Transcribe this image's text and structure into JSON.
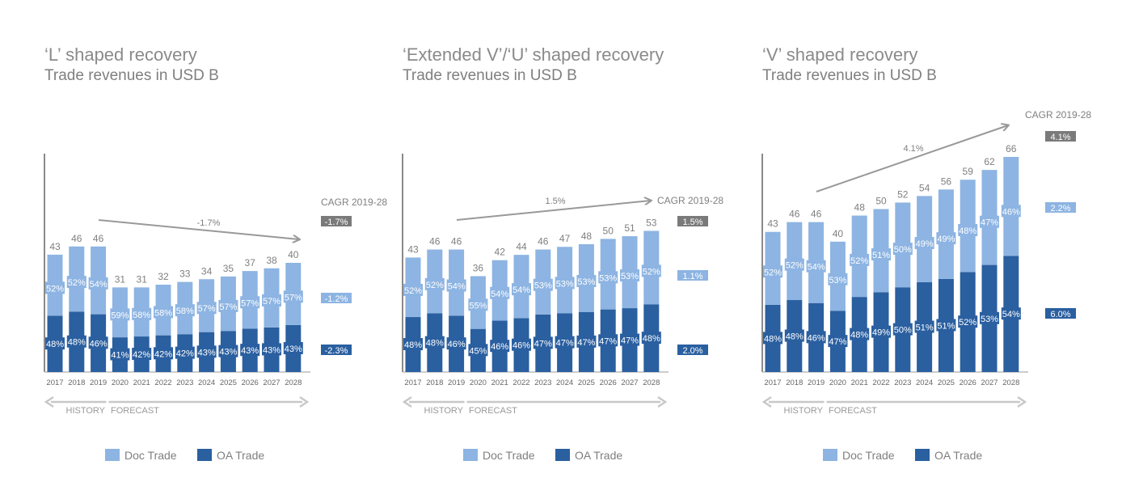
{
  "colors": {
    "doc": "#8db4e2",
    "oa": "#2a5fa0",
    "total_box": "#7a7a7a",
    "text": "#7f7f7f",
    "arrow": "#999999",
    "timeline": "#c8c8c8"
  },
  "legend": {
    "doc": "Doc Trade",
    "oa": "OA Trade"
  },
  "timeline": {
    "history": "HISTORY",
    "forecast": "FORECAST"
  },
  "chart_data": [
    {
      "type": "bar",
      "stacked": true,
      "title": "‘L’ shaped recovery",
      "subtitle": "Trade revenues in USD B",
      "categories": [
        "2017",
        "2018",
        "2019",
        "2020",
        "2021",
        "2022",
        "2023",
        "2024",
        "2025",
        "2026",
        "2027",
        "2028"
      ],
      "totals": [
        43,
        46,
        46,
        31,
        31,
        32,
        33,
        34,
        35,
        37,
        38,
        40
      ],
      "series": [
        {
          "name": "Doc Trade",
          "share_pct": [
            52,
            52,
            54,
            59,
            58,
            58,
            58,
            57,
            57,
            57,
            57,
            57
          ]
        },
        {
          "name": "OA Trade",
          "share_pct": [
            48,
            48,
            46,
            41,
            42,
            42,
            42,
            43,
            43,
            43,
            43,
            43
          ]
        }
      ],
      "ylim": [
        0,
        80
      ],
      "trend_label": "-1.7%",
      "cagr_title": "CAGR 2019-28",
      "cagr": {
        "total": "-1.7%",
        "doc": "-1.2%",
        "oa": "-2.3%"
      }
    },
    {
      "type": "bar",
      "stacked": true,
      "title": "‘Extended V’/‘U’ shaped recovery",
      "subtitle": "Trade revenues in USD B",
      "categories": [
        "2017",
        "2018",
        "2019",
        "2020",
        "2021",
        "2022",
        "2023",
        "2024",
        "2025",
        "2026",
        "2027",
        "2028"
      ],
      "totals": [
        43,
        46,
        46,
        36,
        42,
        44,
        46,
        47,
        48,
        50,
        51,
        53
      ],
      "series": [
        {
          "name": "Doc Trade",
          "share_pct": [
            52,
            52,
            54,
            55,
            54,
            54,
            53,
            53,
            53,
            53,
            53,
            52
          ]
        },
        {
          "name": "OA Trade",
          "share_pct": [
            48,
            48,
            46,
            45,
            46,
            46,
            47,
            47,
            47,
            47,
            47,
            48
          ]
        }
      ],
      "ylim": [
        0,
        82
      ],
      "trend_label": "1.5%",
      "cagr_title": "CAGR 2019-28",
      "cagr": {
        "total": "1.5%",
        "doc": "1.1%",
        "oa": "2.0%"
      }
    },
    {
      "type": "bar",
      "stacked": true,
      "title": "‘V’ shaped recovery",
      "subtitle": "Trade revenues in USD B",
      "categories": [
        "2017",
        "2018",
        "2019",
        "2020",
        "2021",
        "2022",
        "2023",
        "2024",
        "2025",
        "2026",
        "2027",
        "2028"
      ],
      "totals": [
        43,
        46,
        46,
        40,
        48,
        50,
        52,
        54,
        56,
        59,
        62,
        66
      ],
      "series": [
        {
          "name": "Doc Trade",
          "share_pct": [
            52,
            52,
            54,
            53,
            52,
            51,
            50,
            49,
            49,
            48,
            47,
            46
          ]
        },
        {
          "name": "OA Trade",
          "share_pct": [
            48,
            48,
            46,
            47,
            48,
            49,
            50,
            51,
            51,
            52,
            53,
            54
          ]
        }
      ],
      "ylim": [
        0,
        67
      ],
      "trend_label": "4.1%",
      "cagr_title": "CAGR 2019-28",
      "cagr": {
        "total": "4.1%",
        "doc": "2.2%",
        "oa": "6.0%"
      }
    }
  ]
}
